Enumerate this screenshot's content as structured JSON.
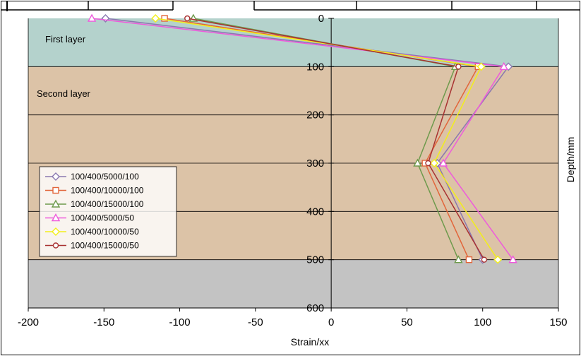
{
  "chart_data": {
    "type": "line",
    "xlabel": "Strain/xx",
    "ylabel": "Depth/mm",
    "xlim": [
      -200,
      150
    ],
    "ylim": [
      0,
      600
    ],
    "y_inverted": true,
    "x_ticks": [
      -200,
      -150,
      -100,
      -50,
      0,
      50,
      100,
      150
    ],
    "y_ticks": [
      0,
      100,
      200,
      300,
      400,
      500,
      600
    ],
    "grid": "horizontal",
    "legend_position": "bottom-left",
    "layers": [
      {
        "label": "First layer",
        "from": 0,
        "to": 100,
        "color": "#b4d2cc"
      },
      {
        "label": "Second layer",
        "from": 100,
        "to": 500,
        "color": "#dcc3a7"
      },
      {
        "label": "",
        "from": 500,
        "to": 600,
        "color": "#c3c3c3"
      }
    ],
    "series": [
      {
        "name": "100/400/5000/100",
        "color": "#8a78b0",
        "marker": "diamond",
        "points": [
          [
            -149,
            0
          ],
          [
            117,
            100
          ],
          [
            70,
            300
          ],
          [
            100,
            500
          ]
        ]
      },
      {
        "name": "100/400/10000/100",
        "color": "#e2653a",
        "marker": "square",
        "points": [
          [
            -110,
            0
          ],
          [
            97,
            100
          ],
          [
            62,
            300
          ],
          [
            91,
            500
          ]
        ]
      },
      {
        "name": "100/400/15000/100",
        "color": "#6e9a4c",
        "marker": "triangle",
        "points": [
          [
            -91,
            0
          ],
          [
            82,
            100
          ],
          [
            57,
            300
          ],
          [
            84,
            500
          ]
        ]
      },
      {
        "name": "100/400/5000/50",
        "color": "#ee5adc",
        "marker": "triangle",
        "points": [
          [
            -158,
            0
          ],
          [
            114,
            100
          ],
          [
            74,
            300
          ],
          [
            120,
            500
          ]
        ]
      },
      {
        "name": "100/400/10000/50",
        "color": "#f2ee1a",
        "marker": "diamond",
        "points": [
          [
            -116,
            0
          ],
          [
            99,
            100
          ],
          [
            68,
            300
          ],
          [
            110,
            500
          ]
        ]
      },
      {
        "name": "100/400/15000/50",
        "color": "#a83232",
        "marker": "circle",
        "points": [
          [
            -95,
            0
          ],
          [
            84,
            100
          ],
          [
            64,
            300
          ],
          [
            101,
            500
          ]
        ]
      }
    ]
  }
}
